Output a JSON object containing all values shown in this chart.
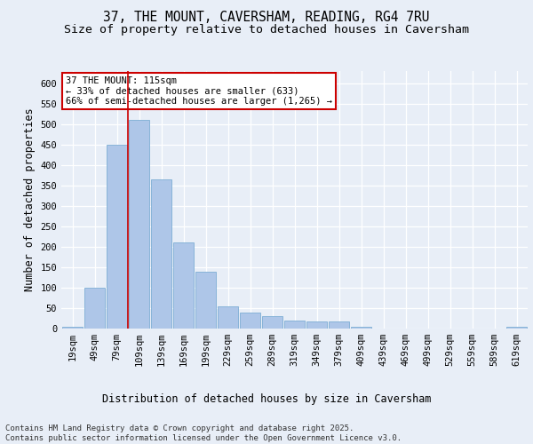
{
  "title_line1": "37, THE MOUNT, CAVERSHAM, READING, RG4 7RU",
  "title_line2": "Size of property relative to detached houses in Caversham",
  "xlabel": "Distribution of detached houses by size in Caversham",
  "ylabel": "Number of detached properties",
  "categories": [
    "19sqm",
    "49sqm",
    "79sqm",
    "109sqm",
    "139sqm",
    "169sqm",
    "199sqm",
    "229sqm",
    "259sqm",
    "289sqm",
    "319sqm",
    "349sqm",
    "379sqm",
    "409sqm",
    "439sqm",
    "469sqm",
    "499sqm",
    "529sqm",
    "559sqm",
    "589sqm",
    "619sqm"
  ],
  "values": [
    5,
    100,
    450,
    510,
    365,
    210,
    140,
    55,
    40,
    30,
    20,
    18,
    18,
    5,
    0,
    0,
    0,
    0,
    0,
    0,
    5
  ],
  "bar_color": "#aec6e8",
  "bar_edge_color": "#7dadd4",
  "background_color": "#e8eef7",
  "grid_color": "#ffffff",
  "vline_color": "#cc0000",
  "annotation_line1": "37 THE MOUNT: 115sqm",
  "annotation_line2": "← 33% of detached houses are smaller (633)",
  "annotation_line3": "66% of semi-detached houses are larger (1,265) →",
  "annotation_box_color": "#ffffff",
  "annotation_box_edge": "#cc0000",
  "ylim": [
    0,
    630
  ],
  "yticks": [
    0,
    50,
    100,
    150,
    200,
    250,
    300,
    350,
    400,
    450,
    500,
    550,
    600
  ],
  "footer_text": "Contains HM Land Registry data © Crown copyright and database right 2025.\nContains public sector information licensed under the Open Government Licence v3.0.",
  "title_fontsize": 10.5,
  "subtitle_fontsize": 9.5,
  "axis_label_fontsize": 8.5,
  "tick_fontsize": 7.5,
  "annotation_fontsize": 7.5,
  "footer_fontsize": 6.5
}
